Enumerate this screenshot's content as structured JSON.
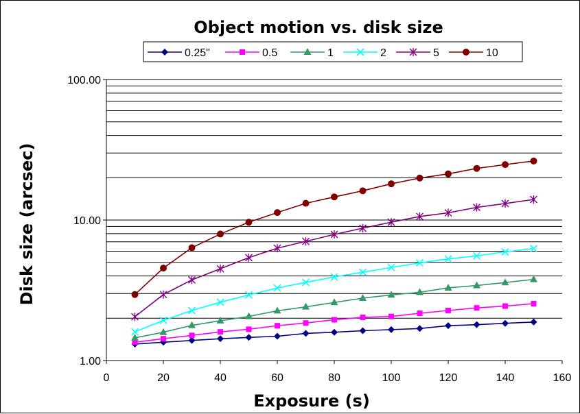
{
  "chart_data": {
    "type": "line",
    "title": "Object motion vs. disk size",
    "xlabel": "Exposure (s)",
    "ylabel": "Disk size (arcsec)",
    "xlim": [
      0,
      160
    ],
    "ylim": [
      1,
      100
    ],
    "yscale": "log",
    "xticks": [
      "0",
      "20",
      "40",
      "60",
      "80",
      "100",
      "120",
      "140",
      "160"
    ],
    "yticks": [
      "1.00",
      "10.00",
      "100.00"
    ],
    "grid": "horizontal",
    "legend_position": "top",
    "x": [
      10,
      20,
      30,
      40,
      50,
      60,
      70,
      80,
      90,
      100,
      110,
      120,
      130,
      140,
      150
    ],
    "series": [
      {
        "name": "0.25\"",
        "color": "#000080",
        "marker": "diamond",
        "values": [
          1.31,
          1.35,
          1.39,
          1.43,
          1.46,
          1.49,
          1.56,
          1.59,
          1.63,
          1.66,
          1.69,
          1.77,
          1.8,
          1.84,
          1.88
        ]
      },
      {
        "name": "0.5",
        "color": "#FF00FF",
        "marker": "square",
        "values": [
          1.35,
          1.43,
          1.51,
          1.6,
          1.67,
          1.77,
          1.85,
          1.95,
          2.03,
          2.06,
          2.17,
          2.27,
          2.37,
          2.44,
          2.54
        ]
      },
      {
        "name": "1",
        "color": "#339966",
        "marker": "triangle",
        "values": [
          1.45,
          1.59,
          1.78,
          1.92,
          2.06,
          2.26,
          2.41,
          2.59,
          2.78,
          2.93,
          3.06,
          3.29,
          3.42,
          3.59,
          3.78
        ]
      },
      {
        "name": "2",
        "color": "#00FFFF",
        "marker": "x",
        "values": [
          1.6,
          1.93,
          2.27,
          2.6,
          2.93,
          3.28,
          3.6,
          3.93,
          4.25,
          4.6,
          4.95,
          5.29,
          5.56,
          5.94,
          6.27
        ]
      },
      {
        "name": "5",
        "color": "#800080",
        "marker": "star",
        "values": [
          2.05,
          2.95,
          3.75,
          4.5,
          5.4,
          6.3,
          7.05,
          7.9,
          8.75,
          9.65,
          10.6,
          11.25,
          12.3,
          13.1,
          14.0
        ]
      },
      {
        "name": "10",
        "color": "#800000",
        "marker": "circle",
        "values": [
          2.95,
          4.55,
          6.35,
          7.95,
          9.65,
          11.3,
          13.15,
          14.6,
          16.15,
          18.1,
          19.9,
          21.3,
          23.3,
          24.8,
          26.3
        ]
      }
    ]
  }
}
